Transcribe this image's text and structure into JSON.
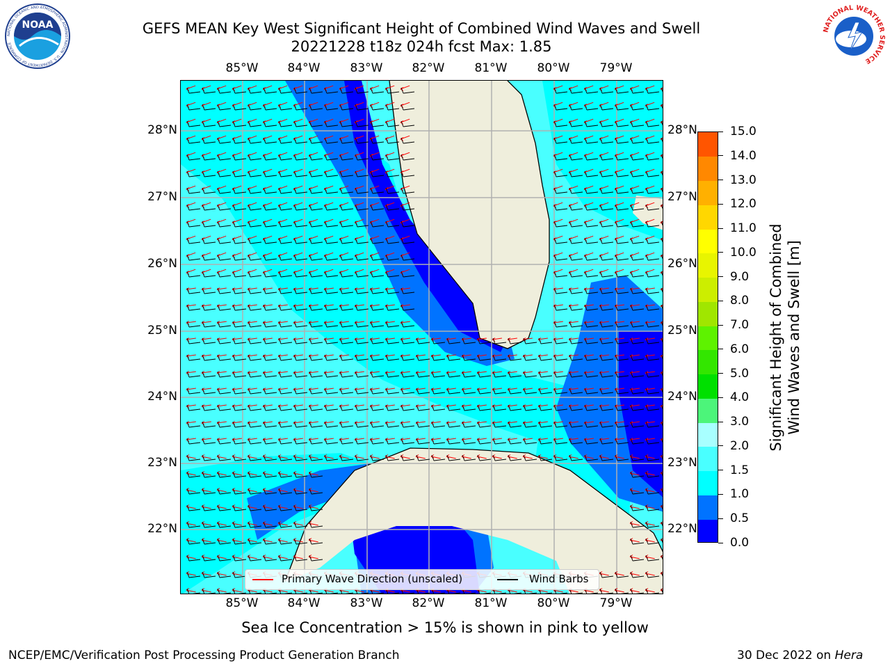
{
  "title_line1": "GEFS MEAN Key West Significant Height of Combined Wind Waves and Swell",
  "title_line2": "20221228 t18z 024h fcst   Max: 1.85",
  "map": {
    "lon_ticks": [
      "85°W",
      "84°W",
      "83°W",
      "82°W",
      "81°W",
      "80°W",
      "79°W"
    ],
    "lat_ticks": [
      "28°N",
      "27°N",
      "26°N",
      "25°N",
      "24°N",
      "23°N",
      "22°N"
    ],
    "colors": {
      "land": "#EFEEDC",
      "coast": "#000000",
      "grid": "#B0B0B0",
      "h0": "#0000FF",
      "h05": "#0073FF",
      "h10": "#00FFFF",
      "h15": "#49FFFF",
      "wave_arrow": "#FF0000",
      "barb": "#000000"
    }
  },
  "colorbar": {
    "label_line1": "Significant Height of Combined",
    "label_line2": "Wind Waves and Swell [m]",
    "ticks": [
      "0.0",
      "0.5",
      "1.0",
      "1.5",
      "2.0",
      "3.0",
      "4.0",
      "5.0",
      "6.0",
      "7.0",
      "8.0",
      "9.0",
      "10.0",
      "11.0",
      "12.0",
      "13.0",
      "14.0",
      "15.0"
    ],
    "colors": [
      "#0000FF",
      "#0073FF",
      "#00FFFF",
      "#49FFFF",
      "#A8FFFF",
      "#4CF57A",
      "#00E000",
      "#33E600",
      "#5EF200",
      "#A0E600",
      "#CCEE00",
      "#E8F500",
      "#FFFF00",
      "#FFD700",
      "#FFB000",
      "#FF8800",
      "#FF5500",
      "#FF2A00",
      "#FF0000"
    ]
  },
  "legend": {
    "wave_label": "Primary Wave Direction (unscaled)",
    "barb_label": "Wind Barbs"
  },
  "ice_note": "Sea Ice Concentration > 15% is shown in pink to yellow",
  "footer_left": "NCEP/EMC/Verification Post Processing Product Generation Branch",
  "footer_right_prefix": "30 Dec 2022 on ",
  "footer_right_host": "Hera",
  "logos": {
    "noaa_text": "NOAA",
    "noaa_ring": "NATIONAL OCEANIC AND ATMOSPHERIC ADMINISTRATION · U.S. DEPARTMENT OF COMMERCE",
    "nws_ring": "NATIONAL WEATHER SERVICE"
  }
}
